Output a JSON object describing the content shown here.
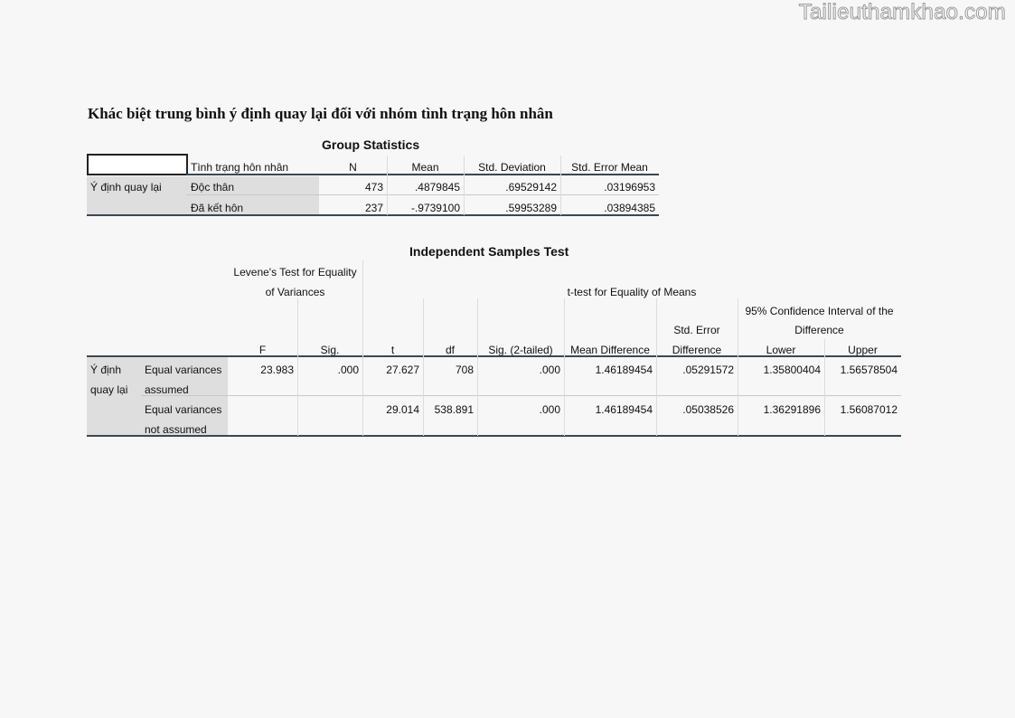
{
  "watermark": "Tailieuthamkhao.com",
  "heading": "Khác biệt trung bình ý định quay lại đối với nhóm tình trạng hôn nhân",
  "group_stats": {
    "caption": "Group Statistics",
    "headers": [
      "Tình trạng hôn nhân",
      "N",
      "Mean",
      "Std. Deviation",
      "Std. Error Mean"
    ],
    "row_label": "Ý định quay lại",
    "rows": [
      {
        "group": "Độc thân",
        "n": "473",
        "mean": ".4879845",
        "sd": ".69529142",
        "se": ".03196953"
      },
      {
        "group": "Đã kết hôn",
        "n": "237",
        "mean": "-.9739100",
        "sd": ".59953289",
        "se": ".03894385"
      }
    ]
  },
  "ind_test": {
    "caption": "Independent Samples Test",
    "levene_header_1": "Levene's Test for Equality",
    "levene_header_2": "of Variances",
    "ttest_header": "t-test for Equality of Means",
    "ci_header_1": "95% Confidence Interval of the",
    "ci_header_2": "Difference",
    "stderr_header_1": "Std. Error",
    "stderr_header_2": "Difference",
    "cols": [
      "F",
      "Sig.",
      "t",
      "df",
      "Sig. (2-tailed)",
      "Mean Difference",
      "Lower",
      "Upper"
    ],
    "row_label_1": "Ý định",
    "row_label_2": "quay lại",
    "rows": [
      {
        "label_1": "Equal variances",
        "label_2": "assumed",
        "f": "23.983",
        "sig": ".000",
        "t": "27.627",
        "df": "708",
        "sig2": ".000",
        "md": "1.46189454",
        "sed": ".05291572",
        "lower": "1.35800404",
        "upper": "1.56578504"
      },
      {
        "label_1": "Equal variances",
        "label_2": "not assumed",
        "f": "",
        "sig": "",
        "t": "29.014",
        "df": "538.891",
        "sig2": ".000",
        "md": "1.46189454",
        "sed": ".05038526",
        "lower": "1.36291896",
        "upper": "1.56087012"
      }
    ]
  }
}
